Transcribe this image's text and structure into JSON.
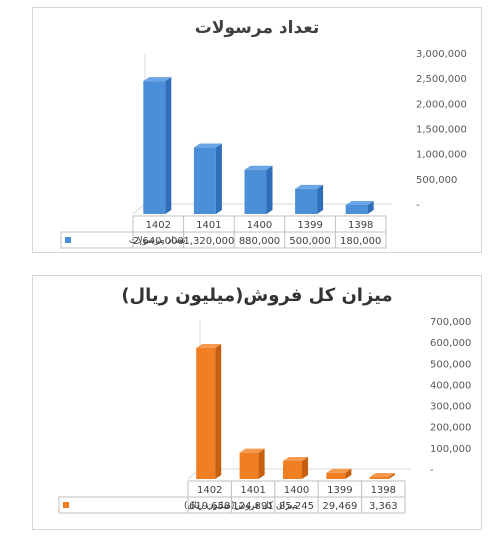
{
  "chart_data": [
    {
      "type": "bar",
      "title": "تعداد مرسولات",
      "categories": [
        "1402",
        "1401",
        "1400",
        "1399",
        "1398"
      ],
      "series": [
        {
          "name": "تعداد مرسولات",
          "values": [
            2640000,
            1320000,
            880000,
            500000,
            180000
          ],
          "value_labels": [
            "2,640,000",
            "1,320,000",
            "880,000",
            "500,000",
            "180,000"
          ]
        }
      ],
      "y_ticks": [
        "-",
        "500,000",
        "1,000,000",
        "1,500,000",
        "2,000,000",
        "2,500,000",
        "3,000,000"
      ],
      "ylim": [
        0,
        3000000
      ],
      "y_axis_side": "right",
      "grid": false,
      "legend": "data-table",
      "colors": {
        "bar_front": "#4a8fd8",
        "bar_side": "#2f6eb8",
        "bar_top": "#6aa6e6"
      }
    },
    {
      "type": "bar",
      "title": "میزان کل فروش(میلیون ریال)",
      "categories": [
        "1402",
        "1401",
        "1400",
        "1399",
        "1398"
      ],
      "series": [
        {
          "name": "میزان کل فروش(میلیون ریال)",
          "values": [
            619658,
            124891,
            85245,
            29469,
            3363
          ],
          "value_labels": [
            "619,658",
            "124,891",
            "85,245",
            "29,469",
            "3,363"
          ]
        }
      ],
      "y_ticks": [
        "-",
        "100,000",
        "200,000",
        "300,000",
        "400,000",
        "500,000",
        "600,000",
        "700,000"
      ],
      "ylim": [
        0,
        700000
      ],
      "y_axis_side": "right",
      "grid": false,
      "legend": "data-table",
      "colors": {
        "bar_front": "#f07e22",
        "bar_side": "#c65f10",
        "bar_top": "#f59a4e"
      }
    }
  ]
}
